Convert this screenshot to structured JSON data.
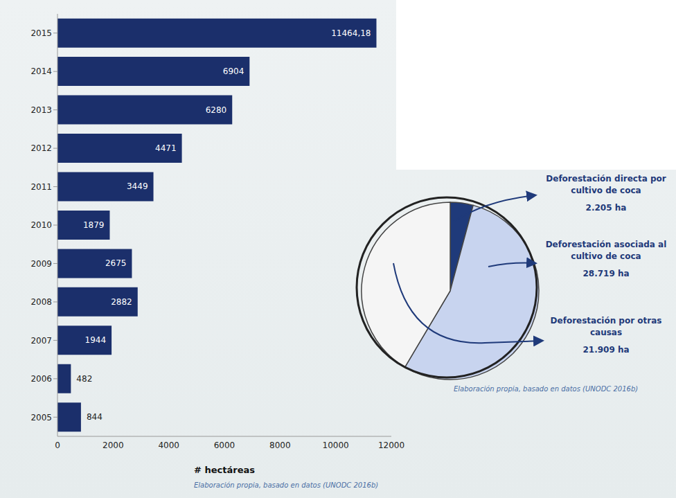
{
  "chart_data": [
    {
      "type": "bar",
      "orientation": "horizontal",
      "categories": [
        "2015",
        "2014",
        "2013",
        "2012",
        "2011",
        "2010",
        "2009",
        "2008",
        "2007",
        "2006",
        "2005"
      ],
      "values": [
        11464.18,
        6904,
        6280,
        4471,
        3449,
        1879,
        2675,
        2882,
        1944,
        482,
        844
      ],
      "value_labels": [
        "11464,18",
        "6904",
        "6280",
        "4471",
        "3449",
        "1879",
        "2675",
        "2882",
        "1944",
        "482",
        "844"
      ],
      "data_labels": true,
      "color": "#1b2f6b",
      "x_label": "# hectáreas",
      "xlim": [
        0,
        12000
      ],
      "xticks": [
        0,
        2000,
        4000,
        6000,
        8000,
        10000,
        12000
      ],
      "grid": false,
      "annotations": [
        "Elaboración propia, basado en datos (UNODC 2016b)"
      ]
    },
    {
      "type": "pie",
      "categories": [
        "Deforestación directa por cultivo de coca",
        "Deforestación asociada al cultivo de coca",
        "Deforestación por otras causas"
      ],
      "values": [
        2205,
        28719,
        21909
      ],
      "value_labels": [
        "2.205 ha",
        "28.719 ha",
        "21.909 ha"
      ],
      "data_labels": true,
      "colors": [
        "#1f3a7a",
        "#c8d4ef",
        "#f5f5f5"
      ],
      "annotations": [
        "Elaboración propia, basado en datos (UNODC 2016b)"
      ]
    }
  ]
}
